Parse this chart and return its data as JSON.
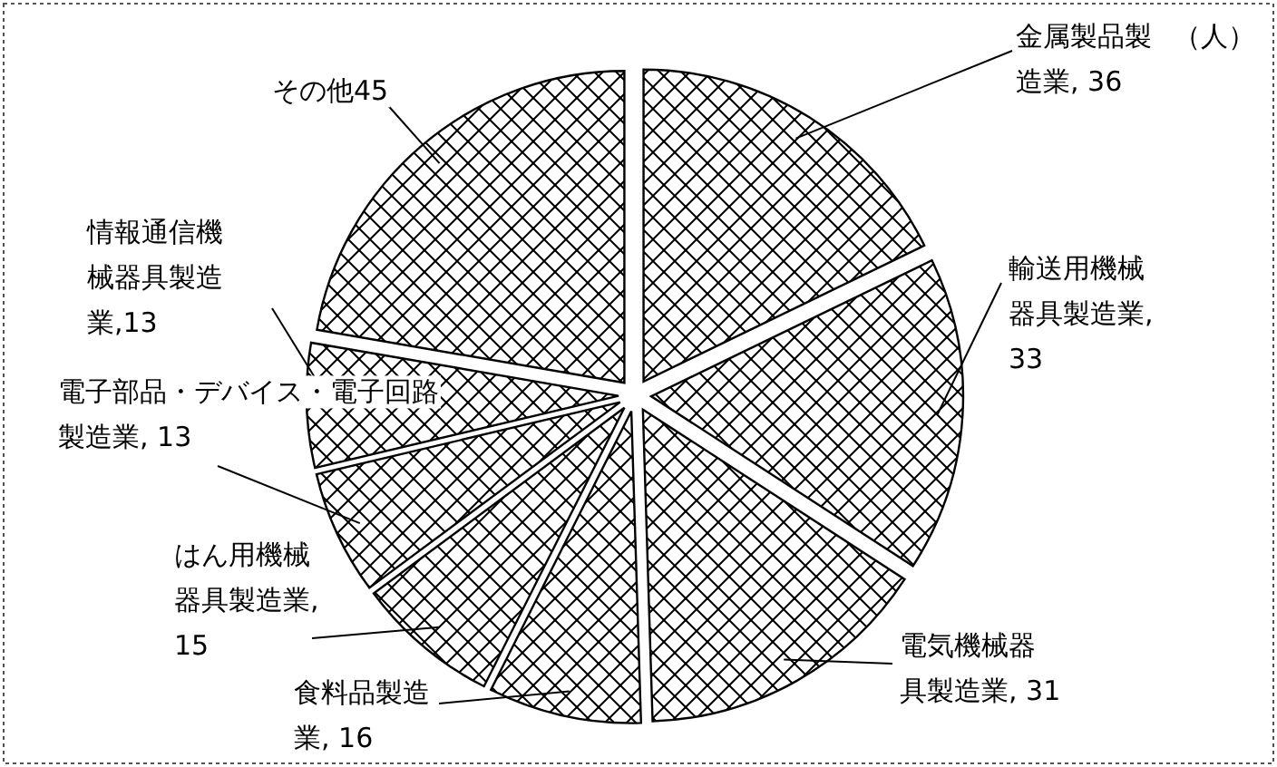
{
  "chart_data": {
    "type": "pie",
    "categories": [
      "金属製品製造業",
      "輸送用機械器具製造業",
      "電気機械器具製造業",
      "食料品製造業",
      "はん用機械器具製造業",
      "電子部品・デバイス・電子回路製造業",
      "情報通信機械器具製造業",
      "その他"
    ],
    "values": [
      36,
      33,
      31,
      16,
      15,
      13,
      13,
      45
    ],
    "value_labels": [
      ", 36",
      ", 33",
      ", 31",
      ", 16",
      ", 15",
      ", 13",
      ",13",
      "45"
    ],
    "annotations": [
      "（人）"
    ]
  }
}
